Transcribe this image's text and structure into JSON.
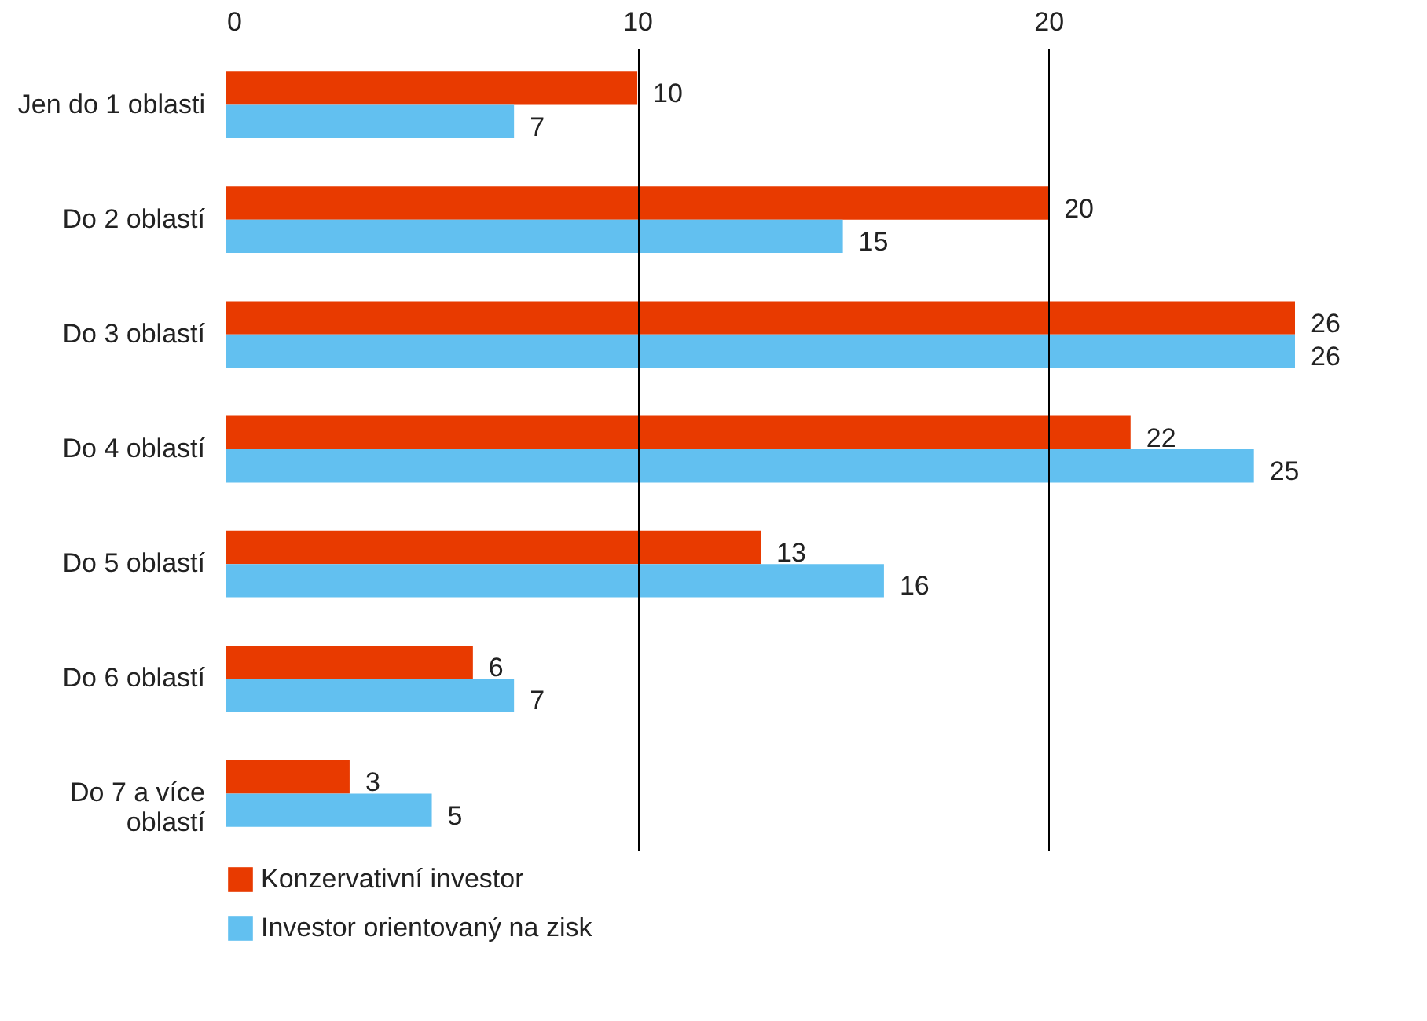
{
  "chart_data": {
    "type": "bar",
    "orientation": "horizontal",
    "categories": [
      "Jen do 1 oblasti",
      "Do 2 oblastí",
      "Do 3 oblastí",
      "Do 4 oblastí",
      "Do 5 oblastí",
      "Do 6 oblastí",
      "Do 7 a více oblastí"
    ],
    "series": [
      {
        "name": "Konzervativní investor",
        "color": "#e83a00",
        "values": [
          10,
          20,
          26,
          22,
          13,
          6,
          3
        ]
      },
      {
        "name": "Investor orientovaný na zisk",
        "color": "#62c0f0",
        "values": [
          7,
          15,
          26,
          25,
          16,
          7,
          5
        ]
      }
    ],
    "xlim": [
      0,
      26
    ],
    "xticks": [
      0,
      10,
      20
    ],
    "grid": "x",
    "data_labels": true,
    "legend": "bottom"
  }
}
